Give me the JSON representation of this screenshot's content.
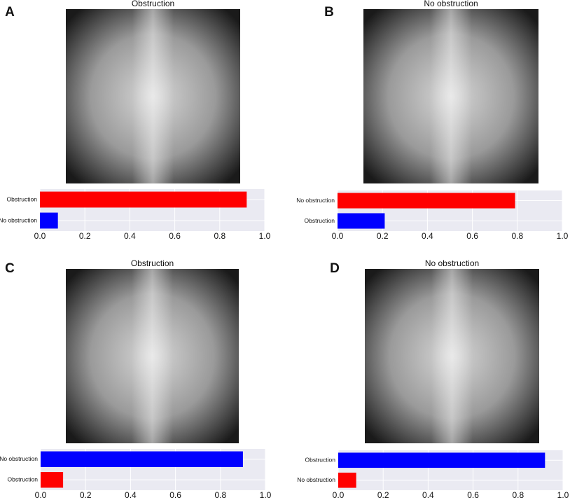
{
  "chart_data": [
    {
      "type": "bar",
      "panel": "A",
      "title": "Obstruction",
      "categories": [
        "Obstruction",
        "No obstruction"
      ],
      "values": [
        0.92,
        0.08
      ],
      "colors": [
        "#ff0000",
        "#0000ff"
      ],
      "xlim": [
        0,
        1
      ],
      "xticks": [
        {
          "value": 0,
          "label": "0.0"
        },
        0.2,
        0.4,
        0.6,
        0.8,
        {
          "value": 1,
          "label": "1.0"
        }
      ],
      "grid": true
    },
    {
      "type": "bar",
      "panel": "B",
      "title": "No obstruction",
      "categories": [
        "No obstruction",
        "Obstruction"
      ],
      "values": [
        0.79,
        0.21
      ],
      "colors": [
        "#ff0000",
        "#0000ff"
      ],
      "xlim": [
        0,
        1
      ],
      "xticks": [
        {
          "value": 0,
          "label": "0.0"
        },
        0.2,
        0.4,
        0.6,
        0.8,
        {
          "value": 1,
          "label": "1.0"
        }
      ],
      "grid": true
    },
    {
      "type": "bar",
      "panel": "C",
      "title": "Obstruction",
      "categories": [
        "No obstruction",
        "Obstruction"
      ],
      "values": [
        0.9,
        0.1
      ],
      "colors": [
        "#0000ff",
        "#ff0000"
      ],
      "xlim": [
        0,
        1
      ],
      "xticks": [
        {
          "value": 0,
          "label": "0.0"
        },
        0.2,
        0.4,
        0.6,
        0.8,
        {
          "value": 1,
          "label": "1.0"
        }
      ],
      "grid": true
    },
    {
      "type": "bar",
      "panel": "D",
      "title": "No obstruction",
      "categories": [
        "Obstruction",
        "No obstruction"
      ],
      "values": [
        0.92,
        0.08
      ],
      "colors": [
        "#0000ff",
        "#ff0000"
      ],
      "xlim": [
        0,
        1
      ],
      "xticks": [
        {
          "value": 0,
          "label": "0.0"
        },
        0.2,
        0.4,
        0.6,
        0.8,
        {
          "value": 1,
          "label": "1.0"
        }
      ],
      "grid": true
    }
  ]
}
